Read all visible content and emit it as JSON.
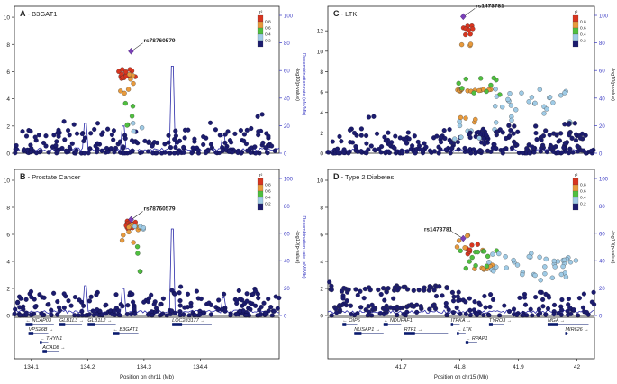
{
  "figure": {
    "colors": {
      "axis": "#222222",
      "recomb": "#2a2aa8",
      "r2_axis": "#3c3cc4",
      "lead": "#7a40b8",
      "bin_02": "#1c1c6e",
      "bin_04": "#9fcbe6",
      "bin_06": "#4fbf3f",
      "bin_08": "#e89a3c",
      "bin_10": "#d8351f",
      "gene": "#0a1a6e"
    },
    "legend": {
      "title": "r²",
      "labels": [
        "0.8",
        "0.6",
        "0.4",
        "0.2"
      ]
    }
  },
  "chart_data": [
    {
      "id": "A",
      "type": "scatter",
      "title": "A",
      "subtitle": "- B3GAT1",
      "xlim": [
        134.07,
        134.54
      ],
      "ylim": [
        0,
        10.8
      ],
      "yticks": [
        "0",
        "2",
        "4",
        "6",
        "8",
        "10"
      ],
      "right_ticks": [
        "0",
        "20",
        "40",
        "60",
        "80",
        "100"
      ],
      "ylabel_left": "-log10(p-value)",
      "ylabel_right": "Recombination rate (cM/Mb)",
      "lead_snp": {
        "label": "rs78760579",
        "x": 134.277,
        "y": 7.5
      },
      "recomb_peaks": [
        {
          "x": 134.195,
          "y": 2.2
        },
        {
          "x": 134.262,
          "y": 2.0
        },
        {
          "x": 134.349,
          "y": 6.4
        },
        {
          "x": 134.44,
          "y": 1.3
        }
      ],
      "clusters": [
        {
          "bin": "10",
          "x": [
            134.255,
            134.285
          ],
          "y": [
            5.3,
            6.2
          ],
          "n": 14
        },
        {
          "bin": "08",
          "x": [
            134.255,
            134.285
          ],
          "y": [
            4.3,
            6.1
          ],
          "n": 7
        },
        {
          "bin": "06",
          "x": [
            134.262,
            134.292
          ],
          "y": [
            1.9,
            3.7
          ],
          "n": 5
        },
        {
          "bin": "04",
          "x": [
            134.27,
            134.3
          ],
          "y": [
            1.6,
            2.4
          ],
          "n": 3
        }
      ]
    },
    {
      "id": "B",
      "type": "scatter",
      "title": "B",
      "subtitle": "- Prostate Cancer",
      "xlim": [
        134.07,
        134.54
      ],
      "ylim": [
        0,
        10.8
      ],
      "yticks": [
        "0",
        "2",
        "4",
        "6",
        "8",
        "10"
      ],
      "right_ticks": [
        "0",
        "20",
        "40",
        "60",
        "80",
        "100"
      ],
      "ylabel_left": "-log10(p-value)",
      "ylabel_right": "Recombination rate (cM/Mb)",
      "lead_snp": {
        "label": "rs78760579",
        "x": 134.277,
        "y": 7.1
      },
      "recomb_peaks": [
        {
          "x": 134.195,
          "y": 2.2
        },
        {
          "x": 134.262,
          "y": 2.0
        },
        {
          "x": 134.349,
          "y": 6.4
        },
        {
          "x": 134.44,
          "y": 1.3
        }
      ],
      "clusters": [
        {
          "bin": "10",
          "x": [
            134.265,
            134.285
          ],
          "y": [
            6.3,
            7.0
          ],
          "n": 12
        },
        {
          "bin": "08",
          "x": [
            134.255,
            134.292
          ],
          "y": [
            5.4,
            7.0
          ],
          "n": 10
        },
        {
          "bin": "06",
          "x": [
            134.265,
            134.3
          ],
          "y": [
            2.2,
            5.9
          ],
          "n": 4
        },
        {
          "bin": "04",
          "x": [
            134.27,
            134.3
          ],
          "y": [
            5.9,
            6.6
          ],
          "n": 4
        }
      ]
    },
    {
      "id": "C",
      "type": "scatter",
      "title": "C",
      "subtitle": "- LTK",
      "xlim": [
        41.575,
        42.03
      ],
      "ylim": [
        0,
        14.4
      ],
      "yticks": [
        "0",
        "2",
        "4",
        "6",
        "8",
        "10",
        "12"
      ],
      "right_ticks": [
        "0",
        "20",
        "40",
        "60",
        "80",
        "100"
      ],
      "ylabel_left": "-log10(p-value)",
      "ylabel_right": "Recombination rate (cM/Mb)",
      "lead_snp": {
        "label": "rs1473781",
        "x": 41.806,
        "y": 13.4
      },
      "recomb_peaks": [],
      "clusters": [
        {
          "bin": "10",
          "x": [
            41.805,
            41.825
          ],
          "y": [
            11.6,
            12.8
          ],
          "n": 8
        },
        {
          "bin": "08",
          "x": [
            41.795,
            41.86
          ],
          "y": [
            6.0,
            6.3
          ],
          "n": 14
        },
        {
          "bin": "06",
          "x": [
            41.795,
            41.87
          ],
          "y": [
            5.6,
            7.5
          ],
          "n": 10
        },
        {
          "bin": "04",
          "x": [
            41.86,
            41.99
          ],
          "y": [
            2.5,
            6.3
          ],
          "n": 30
        },
        {
          "bin": "04",
          "x": [
            41.79,
            41.86
          ],
          "y": [
            1.2,
            3.2
          ],
          "n": 8
        },
        {
          "bin": "08",
          "x": [
            41.8,
            41.82
          ],
          "y": [
            10.0,
            10.8
          ],
          "n": 3
        },
        {
          "bin": "08",
          "x": [
            41.8,
            41.83
          ],
          "y": [
            3.0,
            3.5
          ],
          "n": 4
        },
        {
          "bin": "02",
          "x": [
            41.78,
            42.02
          ],
          "y": [
            0.2,
            3.0
          ],
          "n": 40
        }
      ]
    },
    {
      "id": "D",
      "type": "scatter",
      "title": "D",
      "subtitle": "- Type 2 Diabetes",
      "xlim": [
        41.575,
        42.03
      ],
      "ylim": [
        0,
        10.8
      ],
      "yticks": [
        "0",
        "2",
        "4",
        "6",
        "8",
        "10"
      ],
      "right_ticks": [
        "0",
        "20",
        "40",
        "60",
        "80",
        "100"
      ],
      "ylabel_left": "-log10(p-value)",
      "ylabel_right": "Recombination rate (cM/Mb)",
      "lead_snp": {
        "label": "rs1473781",
        "x": 41.806,
        "y": 5.7
      },
      "recomb_peaks": [],
      "clusters": [
        {
          "bin": "10",
          "x": [
            41.81,
            41.84
          ],
          "y": [
            4.5,
            5.3
          ],
          "n": 6
        },
        {
          "bin": "08",
          "x": [
            41.795,
            41.84
          ],
          "y": [
            4.8,
            6.0
          ],
          "n": 6
        },
        {
          "bin": "08",
          "x": [
            41.81,
            41.86
          ],
          "y": [
            3.3,
            3.8
          ],
          "n": 8
        },
        {
          "bin": "06",
          "x": [
            41.8,
            41.87
          ],
          "y": [
            3.2,
            5.1
          ],
          "n": 12
        },
        {
          "bin": "04",
          "x": [
            41.85,
            42.0
          ],
          "y": [
            3.2,
            4.6
          ],
          "n": 30
        },
        {
          "bin": "04",
          "x": [
            41.9,
            42.02
          ],
          "y": [
            2.6,
            3.2
          ],
          "n": 10
        },
        {
          "bin": "02",
          "x": [
            41.575,
            41.78
          ],
          "y": [
            1.7,
            2.2
          ],
          "n": 40
        },
        {
          "bin": "02",
          "x": [
            41.575,
            41.76
          ],
          "y": [
            0.4,
            0.8
          ],
          "n": 30
        }
      ]
    }
  ],
  "gene_tracks": [
    {
      "id": "left",
      "xlim": [
        134.07,
        134.54
      ],
      "xticks": [
        "134.1",
        "134.2",
        "134.3",
        "134.4"
      ],
      "xtick_values": [
        134.1,
        134.2,
        134.3,
        134.4
      ],
      "xlabel": "Position on chr11 (Mb)",
      "genes": [
        {
          "label": "NCAP03",
          "start": 134.09,
          "end": 134.14,
          "row": 0,
          "dir": "left"
        },
        {
          "label": "GLB1L3",
          "start": 134.15,
          "end": 134.19,
          "row": 0,
          "dir": "right"
        },
        {
          "label": "GLB1L2",
          "start": 134.2,
          "end": 134.25,
          "row": 0,
          "dir": "right"
        },
        {
          "label": "LOC283177",
          "start": 134.35,
          "end": 134.42,
          "row": 0,
          "dir": "right"
        },
        {
          "label": "VPS26B",
          "start": 134.095,
          "end": 134.13,
          "row": 1,
          "dir": "right"
        },
        {
          "label": "B3GAT1",
          "start": 134.245,
          "end": 134.29,
          "row": 1,
          "dir": "left"
        },
        {
          "label": "THYN1",
          "start": 134.115,
          "end": 134.13,
          "row": 2,
          "dir": "left"
        },
        {
          "label": "ACAD8",
          "start": 134.12,
          "end": 134.15,
          "row": 3,
          "dir": "right"
        }
      ]
    },
    {
      "id": "right",
      "xlim": [
        41.575,
        42.03
      ],
      "xticks": [
        "41.7",
        "41.8",
        "41.9",
        "42"
      ],
      "xtick_values": [
        41.7,
        41.8,
        41.9,
        42.0
      ],
      "xlabel": "Position on chr15 (Mb)",
      "genes": [
        {
          "label": "OIP5",
          "start": 41.6,
          "end": 41.625,
          "row": 0,
          "dir": "left"
        },
        {
          "label": "NDUFAF1",
          "start": 41.67,
          "end": 41.7,
          "row": 0,
          "dir": "left"
        },
        {
          "label": "ITPKA",
          "start": 41.785,
          "end": 41.8,
          "row": 0,
          "dir": "right"
        },
        {
          "label": "TYRO3",
          "start": 41.85,
          "end": 41.875,
          "row": 0,
          "dir": "right"
        },
        {
          "label": "MGA",
          "start": 41.95,
          "end": 42.02,
          "row": 0,
          "dir": "right"
        },
        {
          "label": "NUSAP1",
          "start": 41.62,
          "end": 41.67,
          "row": 1,
          "dir": "right"
        },
        {
          "label": "RTF1",
          "start": 41.705,
          "end": 41.78,
          "row": 1,
          "dir": "right"
        },
        {
          "label": "LTK",
          "start": 41.795,
          "end": 41.81,
          "row": 1,
          "dir": "left"
        },
        {
          "label": "MIR626",
          "start": 41.98,
          "end": 41.985,
          "row": 1,
          "dir": "right"
        },
        {
          "label": "RPAP1",
          "start": 41.81,
          "end": 41.83,
          "row": 2,
          "dir": "left"
        }
      ]
    }
  ]
}
